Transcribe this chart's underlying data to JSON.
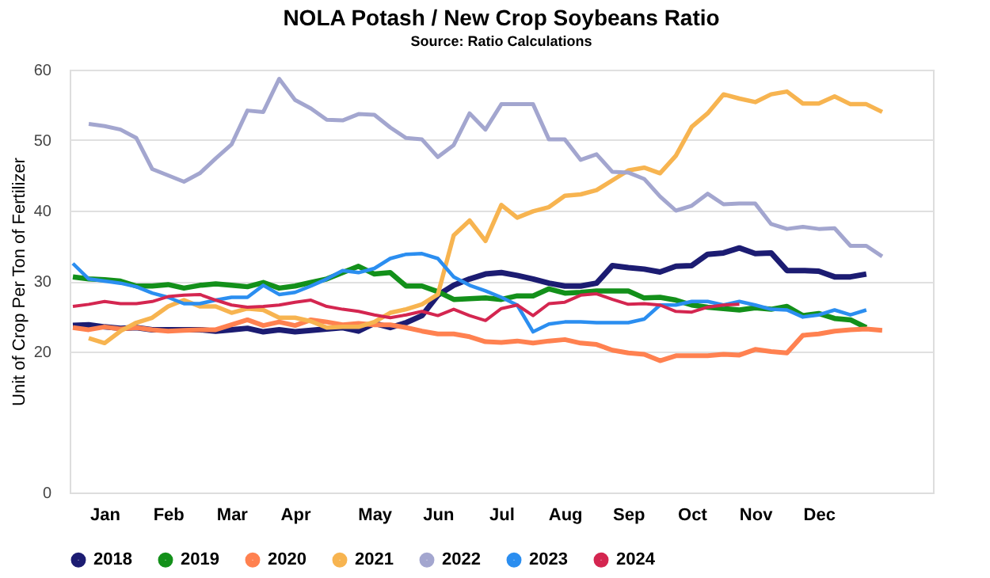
{
  "chart_data": {
    "type": "line",
    "title": "NOLA Potash / New Crop Soybeans Ratio",
    "subtitle": "Source: Ratio Calculations",
    "ylabel": "Unit of Crop Per Ton of Fertilizer",
    "categories": [
      null,
      null,
      "Jan",
      null,
      null,
      null,
      "Feb",
      null,
      null,
      null,
      "Mar",
      null,
      null,
      null,
      "Apr",
      null,
      null,
      null,
      null,
      "May",
      null,
      null,
      null,
      "Jun",
      null,
      null,
      null,
      "Jul",
      null,
      null,
      null,
      "Aug",
      null,
      null,
      null,
      "Sep",
      null,
      null,
      null,
      "Oct",
      null,
      null,
      null,
      "Nov",
      null,
      null,
      null,
      "Dec",
      null,
      null,
      null,
      null
    ],
    "ylim": [
      0,
      60
    ],
    "yticks": [
      0,
      20,
      30,
      40,
      50,
      60
    ],
    "grid": "y",
    "legend": "bottom",
    "marker": "none",
    "line_style": "solid",
    "series": [
      {
        "name": "2018",
        "color": "#1c1c72",
        "values": [
          23.7,
          23.8,
          23.5,
          23.3,
          23.4,
          23.1,
          23.1,
          23.1,
          23.1,
          22.9,
          23.1,
          23.3,
          22.8,
          23.1,
          22.8,
          23,
          23.2,
          23.4,
          22.9,
          24,
          23.4,
          24.1,
          25.1,
          28,
          29.4,
          30.3,
          31,
          31.2,
          30.8,
          30.3,
          29.7,
          29.3,
          29.3,
          29.7,
          32.2,
          31.9,
          31.7,
          31.3,
          32.1,
          32.2,
          33.8,
          34,
          34.7,
          33.9,
          34,
          31.5,
          31.5,
          31.4,
          30.6,
          30.6,
          31,
          null
        ]
      },
      {
        "name": "2019",
        "color": "#13901a",
        "values": [
          30.6,
          30.3,
          30.2,
          30,
          29.3,
          29.3,
          29.5,
          29,
          29.4,
          29.6,
          29.4,
          29.2,
          29.8,
          29,
          29.3,
          29.8,
          30.3,
          31.2,
          32.1,
          31,
          31.2,
          29.3,
          29.3,
          28.5,
          27.4,
          27.5,
          27.6,
          27.4,
          27.9,
          27.9,
          28.9,
          28.3,
          28.4,
          28.6,
          28.6,
          28.6,
          27.6,
          27.7,
          27.3,
          26.6,
          26.3,
          26.1,
          25.9,
          26.2,
          26,
          26.4,
          25.1,
          25.4,
          24.7,
          24.5,
          23.4,
          null
        ]
      },
      {
        "name": "2020",
        "color": "#ff8150",
        "values": [
          23.4,
          23.1,
          23.5,
          23.2,
          23.4,
          23.1,
          22.9,
          23,
          23.1,
          23.1,
          23.8,
          24.5,
          23.7,
          24.2,
          23.7,
          24.5,
          24.2,
          23.8,
          24,
          23.8,
          23.8,
          23.4,
          22.9,
          22.5,
          22.5,
          22.1,
          21.4,
          21.3,
          21.5,
          21.2,
          21.5,
          21.7,
          21.2,
          21,
          20.2,
          19.8,
          19.6,
          18.7,
          19.4,
          19.4,
          19.4,
          19.6,
          19.5,
          20.3,
          20,
          19.8,
          22.3,
          22.5,
          22.9,
          23.1,
          23.2,
          23
        ]
      },
      {
        "name": "2021",
        "color": "#f7b450",
        "values": [
          null,
          21.9,
          21.2,
          22.9,
          24.1,
          24.8,
          26.4,
          27.3,
          26.4,
          26.4,
          25.5,
          26.1,
          25.9,
          24.8,
          24.8,
          24.3,
          23.4,
          23.5,
          23.5,
          24.2,
          25.5,
          26,
          26.7,
          28.1,
          36.5,
          38.6,
          35.7,
          40.8,
          39,
          39.9,
          40.5,
          42.1,
          42.3,
          42.9,
          44.3,
          45.7,
          46.1,
          45.3,
          47.8,
          51.9,
          53.8,
          56.5,
          55.9,
          55.4,
          56.5,
          56.9,
          55.2,
          55.2,
          56.2,
          55.1,
          55.1,
          54
        ]
      },
      {
        "name": "2022",
        "color": "#a3a6cf",
        "values": [
          null,
          52.3,
          52,
          51.5,
          50.3,
          45.9,
          45,
          44.1,
          45.3,
          47.4,
          49.4,
          54.2,
          54,
          58.7,
          55.7,
          54.5,
          52.9,
          52.8,
          53.7,
          53.6,
          51.8,
          50.3,
          50.1,
          47.6,
          49.3,
          53.8,
          51.5,
          55.1,
          55.1,
          55.1,
          50.1,
          50.1,
          47.2,
          48,
          45.5,
          45.4,
          44.5,
          42,
          40,
          40.7,
          42.4,
          40.9,
          41,
          41,
          38.1,
          37.4,
          37.7,
          37.4,
          37.5,
          35,
          35,
          33.5
        ]
      },
      {
        "name": "2023",
        "color": "#2b8ef0",
        "values": [
          32.5,
          30.3,
          30,
          29.7,
          29.2,
          28.3,
          27.7,
          26.8,
          26.8,
          27.3,
          27.7,
          27.7,
          29.4,
          28.1,
          28.4,
          29.3,
          30.3,
          31.5,
          31.2,
          31.8,
          33.2,
          33.8,
          33.9,
          33.2,
          30.6,
          29.4,
          28.6,
          27.7,
          26.6,
          22.8,
          23.9,
          24.2,
          24.2,
          24.1,
          24.1,
          24.1,
          24.6,
          26.6,
          26.6,
          27.1,
          27.1,
          26.6,
          27.1,
          26.6,
          26,
          25.9,
          24.9,
          25.2,
          25.9,
          25.2,
          25.9,
          null
        ]
      },
      {
        "name": "2024",
        "color": "#d42650",
        "values": [
          26.4,
          26.7,
          27.1,
          26.8,
          26.8,
          27.1,
          27.8,
          28,
          28.1,
          27.3,
          26.6,
          26.3,
          26.4,
          26.6,
          27,
          27.3,
          26.4,
          26,
          25.7,
          25.2,
          24.8,
          25.2,
          25.7,
          25.1,
          26,
          25.1,
          24.4,
          26.1,
          26.6,
          25.1,
          26.8,
          27,
          28,
          28.2,
          27.4,
          26.7,
          26.8,
          26.6,
          25.7,
          25.6,
          26.3,
          26.6,
          26.7,
          null,
          null,
          null,
          null,
          null,
          null,
          null,
          null,
          null
        ]
      }
    ]
  }
}
